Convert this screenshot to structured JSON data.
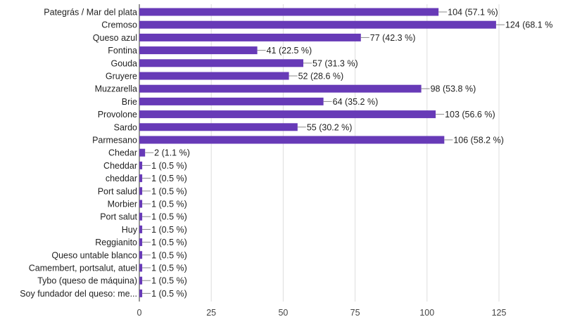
{
  "chart_data": {
    "type": "bar",
    "orientation": "horizontal",
    "title": "",
    "xlabel": "",
    "ylabel": "",
    "xlim": [
      0,
      125
    ],
    "x_ticks": [
      0,
      25,
      50,
      75,
      100,
      125
    ],
    "grid": true,
    "color": "#673ab7",
    "categories": [
      "Pategrás / Mar del plata",
      "Cremoso",
      "Queso azul",
      "Fontina",
      "Gouda",
      "Gruyere",
      "Muzzarella",
      "Brie",
      "Provolone",
      "Sardo",
      "Parmesano",
      "Chedar",
      "Cheddar",
      "cheddar",
      "Port salud",
      "Morbier",
      "Port salut",
      "Huy",
      "Reggianito",
      "Queso untable blanco",
      "Camembert, portsalut, atuel",
      "Tybo (queso de máquina)",
      "Soy fundador del queso: me..."
    ],
    "values": [
      104,
      124,
      77,
      41,
      57,
      52,
      98,
      64,
      103,
      55,
      106,
      2,
      1,
      1,
      1,
      1,
      1,
      1,
      1,
      1,
      1,
      1,
      1
    ],
    "value_labels": [
      "104 (57.1 %)",
      "124 (68.1 %",
      "77 (42.3 %)",
      "41 (22.5 %)",
      "57 (31.3 %)",
      "52 (28.6 %)",
      "98 (53.8 %)",
      "64 (35.2 %)",
      "103 (56.6 %)",
      "55 (30.2 %)",
      "106 (58.2 %)",
      "2 (1.1 %)",
      "1 (0.5 %)",
      "1 (0.5 %)",
      "1 (0.5 %)",
      "1 (0.5 %)",
      "1 (0.5 %)",
      "1 (0.5 %)",
      "1 (0.5 %)",
      "1 (0.5 %)",
      "1 (0.5 %)",
      "1 (0.5 %)",
      "1 (0.5 %)"
    ]
  }
}
